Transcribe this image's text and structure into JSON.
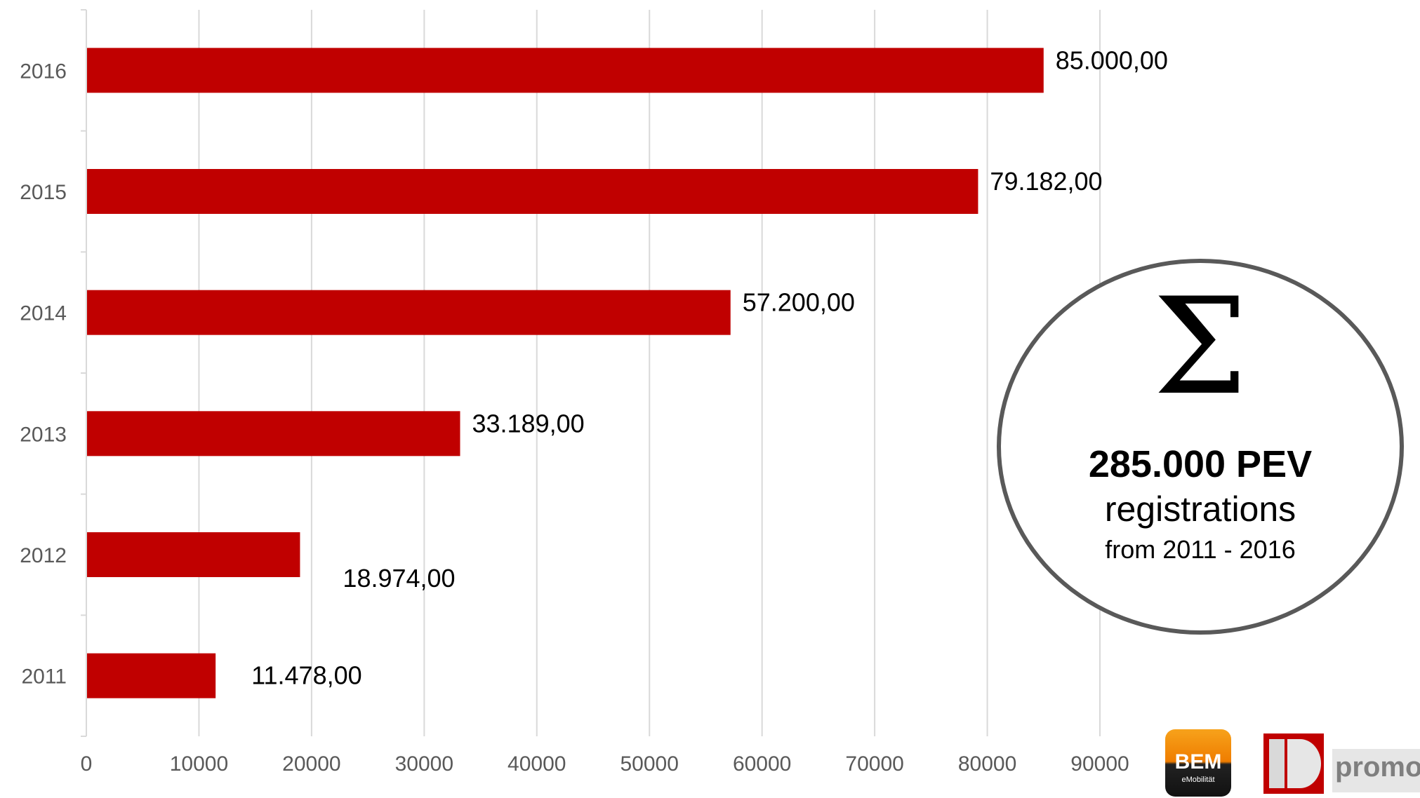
{
  "chart_data": {
    "type": "bar",
    "orientation": "horizontal",
    "categories": [
      "2016",
      "2015",
      "2014",
      "2013",
      "2012",
      "2011"
    ],
    "values": [
      85000,
      79182,
      57200,
      33189,
      18974,
      11478
    ],
    "data_labels": [
      "85.000,00",
      "79.182,00",
      "57.200,00",
      "33.189,00",
      "18.974,00",
      "11.478,00"
    ],
    "x_ticks": [
      "0",
      "10000",
      "20000",
      "30000",
      "40000",
      "50000",
      "60000",
      "70000",
      "80000",
      "90000"
    ],
    "xlim": [
      0,
      90000
    ],
    "grid": "vertical",
    "bar_color": "#c00000",
    "title": "",
    "xlabel": "",
    "ylabel": ""
  },
  "summary": {
    "symbol": "Σ",
    "count": "285.000 PEV",
    "text": "registrations",
    "range": "from 2011 - 2016"
  },
  "logos": {
    "bem": {
      "text": "BEM",
      "subtext": "eMobilität",
      "colors": [
        "#ef7d00",
        "#111111"
      ]
    },
    "promo": {
      "text": "promo",
      "color": "#c00000"
    }
  }
}
